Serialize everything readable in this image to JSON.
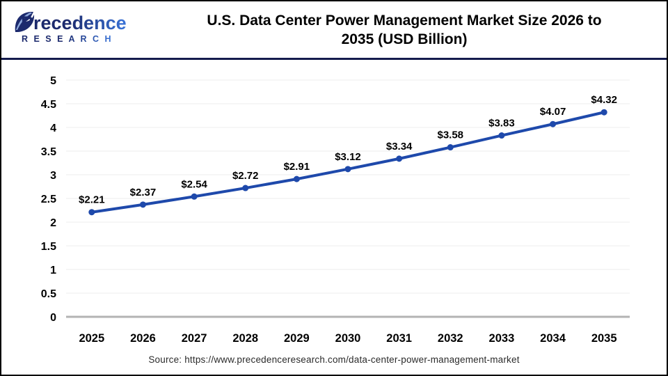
{
  "header": {
    "brand": {
      "line1": "Precedence",
      "line2": "R E S E A R C H",
      "navy": "#1c2a6d",
      "blue": "#3a74d9"
    },
    "title_line1": "U.S. Data Center Power Management Market Size 2026 to",
    "title_line2": "2035 (USD Billion)"
  },
  "chart_data": {
    "type": "line",
    "title": "U.S. Data Center Power Management Market Size 2026 to 2035 (USD Billion)",
    "xlabel": "",
    "ylabel": "",
    "categories": [
      "2025",
      "2026",
      "2027",
      "2028",
      "2029",
      "2030",
      "2031",
      "2032",
      "2033",
      "2034",
      "2035"
    ],
    "values": [
      2.21,
      2.37,
      2.54,
      2.72,
      2.91,
      3.12,
      3.34,
      3.58,
      3.83,
      4.07,
      4.32
    ],
    "point_labels": [
      "$2.21",
      "$2.37",
      "$2.54",
      "$2.72",
      "$2.91",
      "$3.12",
      "$3.34",
      "$3.58",
      "$3.83",
      "$4.07",
      "$4.32"
    ],
    "ylim": [
      0,
      5
    ],
    "yticks": [
      0,
      0.5,
      1,
      1.5,
      2,
      2.5,
      3,
      3.5,
      4,
      4.5,
      5
    ],
    "ytick_labels": [
      "0",
      "0.5",
      "1",
      "1.5",
      "2",
      "2.5",
      "3",
      "3.5",
      "4",
      "4.5",
      "5"
    ],
    "grid": true,
    "legend_position": "none",
    "line_color": "#1e49ab",
    "marker_color": "#1e49ab",
    "grid_color": "#ececec",
    "axis_color": "#b3b3b3",
    "label_color": "#000000"
  },
  "footer": {
    "source": "Source: https://www.precedenceresearch.com/data-center-power-management-market"
  }
}
